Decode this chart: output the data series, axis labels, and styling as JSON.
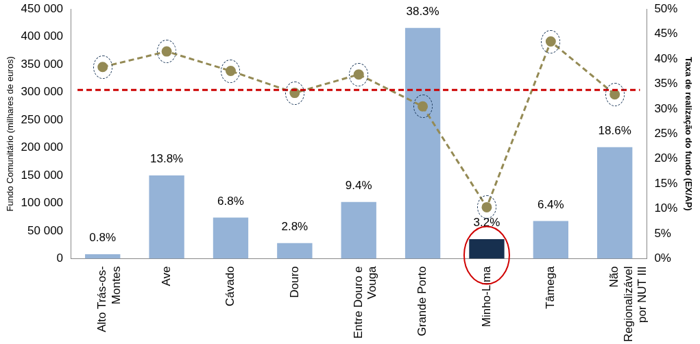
{
  "chart_data": {
    "type": "bar",
    "ylabel": "Fundo Comunitário (milhares de euros)",
    "y2label": "Taxa de realização do fundo (EX/AP)",
    "categories": [
      "Alto Trás-os-Montes",
      "Ave",
      "Cávado",
      "Douro",
      "Entre Douro e Vouga",
      "Grande Porto",
      "Minho-Lima",
      "Tâmega",
      "Não Regionalizável por NUT III"
    ],
    "ylim": [
      0,
      450000
    ],
    "yticks": [
      {
        "value": 0,
        "label": "0"
      },
      {
        "value": 50000,
        "label": "50 000"
      },
      {
        "value": 100000,
        "label": "100 000"
      },
      {
        "value": 150000,
        "label": "150 000"
      },
      {
        "value": 200000,
        "label": "200 000"
      },
      {
        "value": 250000,
        "label": "250 000"
      },
      {
        "value": 300000,
        "label": "300 000"
      },
      {
        "value": 350000,
        "label": "350 000"
      },
      {
        "value": 400000,
        "label": "400 000"
      },
      {
        "value": 450000,
        "label": "450 000"
      }
    ],
    "y2lim": [
      0,
      50
    ],
    "y2ticks": [
      {
        "value": 0,
        "label": "0%"
      },
      {
        "value": 5,
        "label": "5%"
      },
      {
        "value": 10,
        "label": "10%"
      },
      {
        "value": 15,
        "label": "15%"
      },
      {
        "value": 20,
        "label": "20%"
      },
      {
        "value": 25,
        "label": "25%"
      },
      {
        "value": 30,
        "label": "30%"
      },
      {
        "value": 35,
        "label": "35%"
      },
      {
        "value": 40,
        "label": "40%"
      },
      {
        "value": 45,
        "label": "45%"
      },
      {
        "value": 50,
        "label": "50%"
      }
    ],
    "series": [
      {
        "colors": [
          "#95b3d7",
          "#95b3d7",
          "#95b3d7",
          "#95b3d7",
          "#95b3d7",
          "#95b3d7",
          "#17304f",
          "#95b3d7",
          "#95b3d7"
        ],
        "values": [
          8000,
          150000,
          74000,
          28000,
          102000,
          416000,
          35000,
          68000,
          201000
        ]
      },
      {
        "type": "line",
        "axis": "y2",
        "color": "#948a54",
        "marker": "circle",
        "line_style": "dashed",
        "values": [
          38.4,
          41.5,
          37.6,
          33.2,
          36.9,
          30.5,
          10.3,
          43.5,
          32.9
        ]
      }
    ],
    "ref_lines": [
      {
        "axis": "y2",
        "value": 33.8,
        "color": "#cc0000",
        "line_style": "dashed"
      }
    ],
    "annotations": [
      {
        "text": "0.8%",
        "x": "Alto Trás-os-Montes",
        "y": 8000
      },
      {
        "text": "13.8%",
        "x": "Ave",
        "y": 150000
      },
      {
        "text": "6.8%",
        "x": "Cávado",
        "y": 74000
      },
      {
        "text": "2.8%",
        "x": "Douro",
        "y": 28000
      },
      {
        "text": "9.4%",
        "x": "Entre Douro e Vouga",
        "y": 102000
      },
      {
        "text": "38.3%",
        "x": "Grande Porto",
        "y": 416000
      },
      {
        "text": "3.2%",
        "x": "Minho-Lima",
        "y": 35000
      },
      {
        "text": "6.4%",
        "x": "Tâmega",
        "y": 68000
      },
      {
        "text": "18.6%",
        "x": "Não Regionalizável por NUT III",
        "y": 201000
      }
    ],
    "grid": false,
    "legend": false
  }
}
